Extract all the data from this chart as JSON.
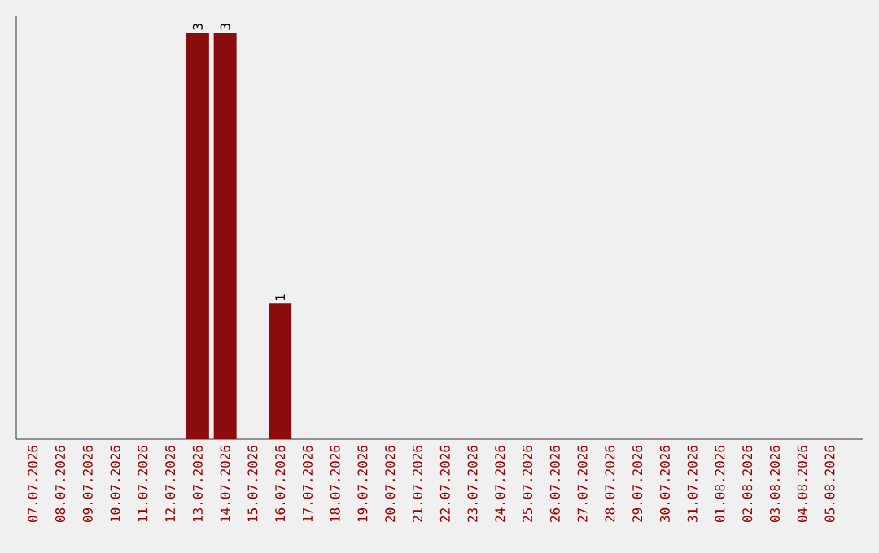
{
  "chart_data": {
    "type": "bar",
    "categories": [
      "07.07.2026",
      "08.07.2026",
      "09.07.2026",
      "10.07.2026",
      "11.07.2026",
      "12.07.2026",
      "13.07.2026",
      "14.07.2026",
      "15.07.2026",
      "16.07.2026",
      "17.07.2026",
      "18.07.2026",
      "19.07.2026",
      "20.07.2026",
      "21.07.2026",
      "22.07.2026",
      "23.07.2026",
      "24.07.2026",
      "25.07.2026",
      "26.07.2026",
      "27.07.2026",
      "28.07.2026",
      "29.07.2026",
      "30.07.2026",
      "31.07.2026",
      "01.08.2026",
      "02.08.2026",
      "03.08.2026",
      "04.08.2026",
      "05.08.2026"
    ],
    "values": [
      0,
      0,
      0,
      0,
      0,
      0,
      3,
      3,
      0,
      1,
      0,
      0,
      0,
      0,
      0,
      0,
      0,
      0,
      0,
      0,
      0,
      0,
      0,
      0,
      0,
      0,
      0,
      0,
      0,
      0
    ],
    "value_labels": [
      null,
      null,
      null,
      null,
      null,
      null,
      "3",
      "3",
      null,
      "1",
      null,
      null,
      null,
      null,
      null,
      null,
      null,
      null,
      null,
      null,
      null,
      null,
      null,
      null,
      null,
      null,
      null,
      null,
      null,
      null
    ],
    "color": "#8b0c0c"
  }
}
